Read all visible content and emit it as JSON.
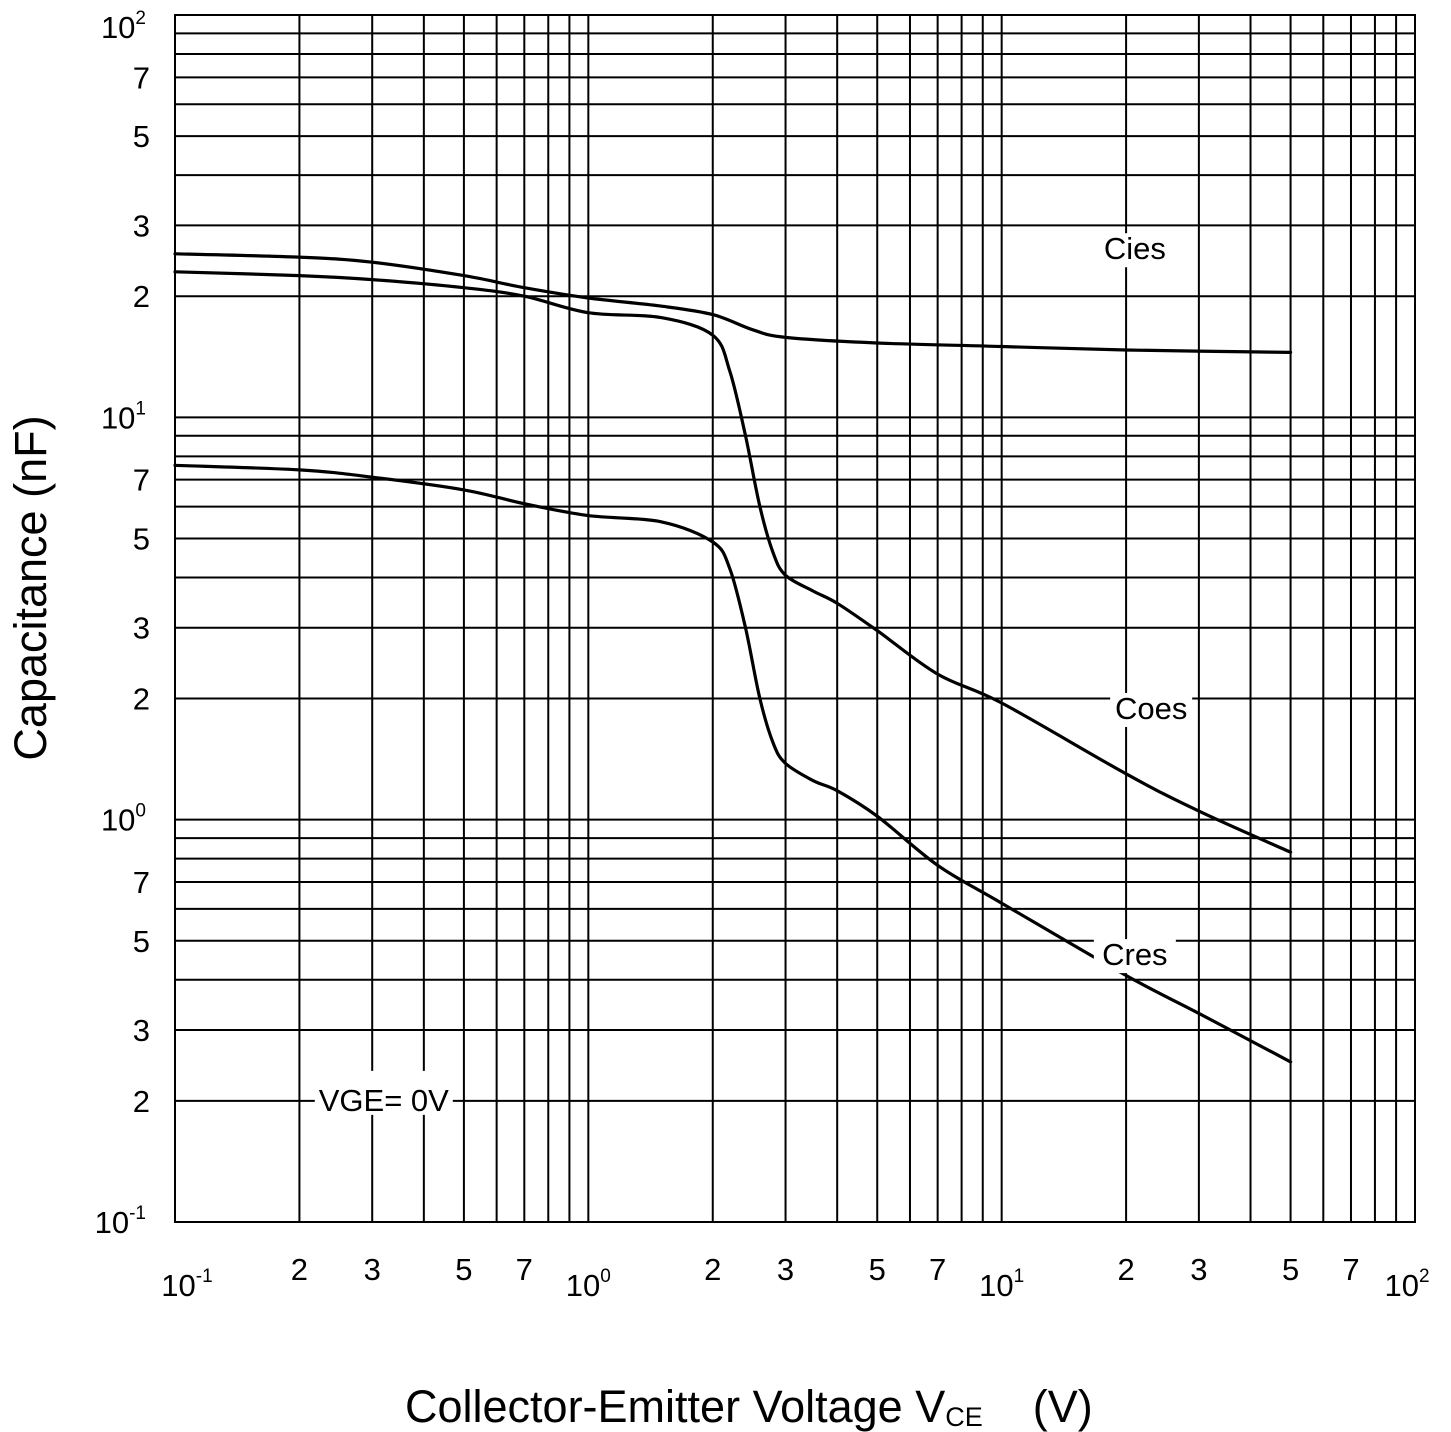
{
  "chart_data": {
    "type": "line",
    "x_scale": "log",
    "y_scale": "log",
    "xlim": [
      0.1,
      100
    ],
    "ylim": [
      0.1,
      100
    ],
    "grid": true,
    "xlabel": {
      "main": "Collector-Emitter Voltage   V",
      "sub": "CE",
      "unit": "(V)"
    },
    "ylabel": "Capacitance   (nF)",
    "x_ticks": [
      {
        "v": 0.1,
        "mant": "10",
        "exp": "-1"
      },
      {
        "v": 0.2,
        "mant": "2",
        "exp": ""
      },
      {
        "v": 0.3,
        "mant": "3",
        "exp": ""
      },
      {
        "v": 0.5,
        "mant": "5",
        "exp": ""
      },
      {
        "v": 0.7,
        "mant": "7",
        "exp": ""
      },
      {
        "v": 1,
        "mant": "10",
        "exp": "0"
      },
      {
        "v": 2,
        "mant": "2",
        "exp": ""
      },
      {
        "v": 3,
        "mant": "3",
        "exp": ""
      },
      {
        "v": 5,
        "mant": "5",
        "exp": ""
      },
      {
        "v": 7,
        "mant": "7",
        "exp": ""
      },
      {
        "v": 10,
        "mant": "10",
        "exp": "1"
      },
      {
        "v": 20,
        "mant": "2",
        "exp": ""
      },
      {
        "v": 30,
        "mant": "3",
        "exp": ""
      },
      {
        "v": 50,
        "mant": "5",
        "exp": ""
      },
      {
        "v": 70,
        "mant": "7",
        "exp": ""
      },
      {
        "v": 100,
        "mant": "10",
        "exp": "2"
      }
    ],
    "y_ticks": [
      {
        "v": 100,
        "mant": "10",
        "exp": "2"
      },
      {
        "v": 70,
        "mant": "7",
        "exp": ""
      },
      {
        "v": 50,
        "mant": "5",
        "exp": ""
      },
      {
        "v": 30,
        "mant": "3",
        "exp": ""
      },
      {
        "v": 20,
        "mant": "2",
        "exp": ""
      },
      {
        "v": 10,
        "mant": "10",
        "exp": "1"
      },
      {
        "v": 7,
        "mant": "7",
        "exp": ""
      },
      {
        "v": 5,
        "mant": "5",
        "exp": ""
      },
      {
        "v": 3,
        "mant": "3",
        "exp": ""
      },
      {
        "v": 2,
        "mant": "2",
        "exp": ""
      },
      {
        "v": 1,
        "mant": "10",
        "exp": "0"
      },
      {
        "v": 0.7,
        "mant": "7",
        "exp": ""
      },
      {
        "v": 0.5,
        "mant": "5",
        "exp": ""
      },
      {
        "v": 0.3,
        "mant": "3",
        "exp": ""
      },
      {
        "v": 0.2,
        "mant": "2",
        "exp": ""
      },
      {
        "v": 0.1,
        "mant": "10",
        "exp": "-1"
      }
    ],
    "series": [
      {
        "name": "Cies",
        "label_at": [
          21,
          25
        ],
        "points": [
          [
            0.1,
            25.5
          ],
          [
            0.2,
            25.0
          ],
          [
            0.3,
            24.3
          ],
          [
            0.5,
            22.5
          ],
          [
            0.7,
            21.0
          ],
          [
            1,
            19.8
          ],
          [
            1.5,
            18.9
          ],
          [
            2,
            18.0
          ],
          [
            2.5,
            16.5
          ],
          [
            3,
            15.8
          ],
          [
            5,
            15.3
          ],
          [
            10,
            15.0
          ],
          [
            20,
            14.7
          ],
          [
            50,
            14.5
          ]
        ]
      },
      {
        "name": "Coes",
        "label_at": [
          23,
          1.8
        ],
        "points": [
          [
            0.1,
            23.0
          ],
          [
            0.2,
            22.5
          ],
          [
            0.3,
            22.0
          ],
          [
            0.5,
            21.0
          ],
          [
            0.7,
            20.0
          ],
          [
            1,
            18.2
          ],
          [
            1.5,
            17.7
          ],
          [
            2,
            16.0
          ],
          [
            2.2,
            13.0
          ],
          [
            2.4,
            9.0
          ],
          [
            2.6,
            6.0
          ],
          [
            2.8,
            4.6
          ],
          [
            3,
            4.05
          ],
          [
            3.5,
            3.7
          ],
          [
            4,
            3.45
          ],
          [
            5,
            2.95
          ],
          [
            7,
            2.3
          ],
          [
            10,
            1.95
          ],
          [
            20,
            1.3
          ],
          [
            30,
            1.05
          ],
          [
            50,
            0.83
          ]
        ]
      },
      {
        "name": "Cres",
        "label_at": [
          21,
          0.44
        ],
        "points": [
          [
            0.1,
            7.6
          ],
          [
            0.2,
            7.4
          ],
          [
            0.3,
            7.1
          ],
          [
            0.5,
            6.6
          ],
          [
            0.7,
            6.1
          ],
          [
            1,
            5.7
          ],
          [
            1.5,
            5.5
          ],
          [
            2,
            4.9
          ],
          [
            2.2,
            4.2
          ],
          [
            2.4,
            3.0
          ],
          [
            2.6,
            2.0
          ],
          [
            2.8,
            1.55
          ],
          [
            3,
            1.38
          ],
          [
            3.5,
            1.25
          ],
          [
            4,
            1.18
          ],
          [
            5,
            1.02
          ],
          [
            7,
            0.77
          ],
          [
            10,
            0.62
          ],
          [
            20,
            0.41
          ],
          [
            30,
            0.33
          ],
          [
            50,
            0.25
          ]
        ]
      }
    ],
    "annotations": [
      {
        "text": "VGE= 0V",
        "at": [
          0.32,
          0.2
        ]
      }
    ],
    "line_color": "#000000",
    "grid_color": "#000000",
    "background": "#ffffff"
  }
}
